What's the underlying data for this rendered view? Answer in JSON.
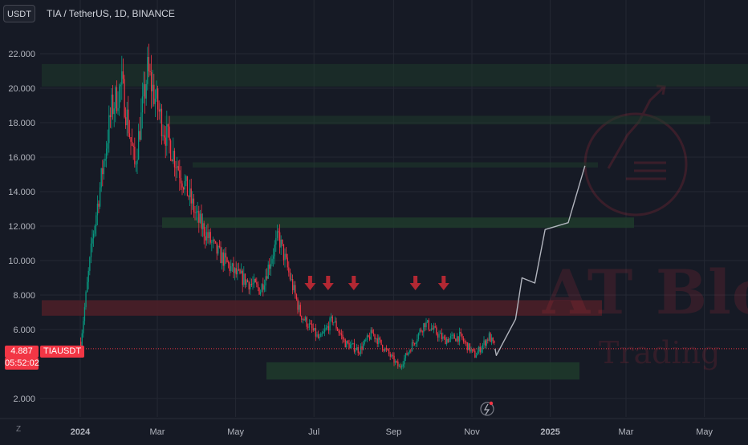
{
  "currency_button": "USDT",
  "symbol_title": "TIA / TetherUS, 1D, BINANCE",
  "price_tag": "4.887",
  "countdown": "05:52:02",
  "symbol_tag": "TIAUSDT",
  "z_label": "Z",
  "watermark_main": "AT Block",
  "watermark_sub": "Trading",
  "colors": {
    "background": "#161a25",
    "up_candle": "#089981",
    "down_candle": "#f23645",
    "support_zone": "#1f3b2c",
    "resistance_zone": "#4a1f28",
    "arrow": "#b22833",
    "projection_line": "#b2b5be"
  },
  "price_axis": {
    "labels": [
      "22.000",
      "20.000",
      "18.000",
      "16.000",
      "14.000",
      "12.000",
      "10.000",
      "8.000",
      "6.000",
      "2.000"
    ]
  },
  "time_axis": {
    "labels": [
      "2024",
      "Mar",
      "May",
      "Jul",
      "Sep",
      "Nov",
      "2025",
      "Mar",
      "May"
    ]
  },
  "icons": [
    "flash-icon",
    "down-arrow-icon",
    "logo-icon"
  ],
  "chart_data": {
    "type": "candlestick",
    "title": "TIA / TetherUS, 1D, BINANCE",
    "ylim": [
      1.2,
      24.5
    ],
    "current_price": 4.887,
    "key_points": [
      {
        "date": "2024-01-01",
        "price": 5.3
      },
      {
        "date": "2024-01-10",
        "price": 11.2
      },
      {
        "date": "2024-01-25",
        "price": 18.8
      },
      {
        "date": "2024-02-02",
        "price": 20.2
      },
      {
        "date": "2024-02-12",
        "price": 15.5
      },
      {
        "date": "2024-02-22",
        "price": 21.0
      },
      {
        "date": "2024-03-05",
        "price": 17.8
      },
      {
        "date": "2024-03-20",
        "price": 14.8
      },
      {
        "date": "2024-04-01",
        "price": 12.4
      },
      {
        "date": "2024-04-15",
        "price": 10.6
      },
      {
        "date": "2024-05-01",
        "price": 9.2
      },
      {
        "date": "2024-05-20",
        "price": 8.3
      },
      {
        "date": "2024-06-03",
        "price": 11.4
      },
      {
        "date": "2024-06-20",
        "price": 6.9
      },
      {
        "date": "2024-07-05",
        "price": 5.4
      },
      {
        "date": "2024-07-15",
        "price": 6.6
      },
      {
        "date": "2024-07-25",
        "price": 5.2
      },
      {
        "date": "2024-08-05",
        "price": 4.8
      },
      {
        "date": "2024-08-15",
        "price": 5.8
      },
      {
        "date": "2024-09-05",
        "price": 3.8
      },
      {
        "date": "2024-09-25",
        "price": 6.4
      },
      {
        "date": "2024-10-10",
        "price": 5.4
      },
      {
        "date": "2024-10-22",
        "price": 5.6
      },
      {
        "date": "2024-11-03",
        "price": 4.5
      },
      {
        "date": "2024-11-14",
        "price": 5.6
      },
      {
        "date": "2024-11-19",
        "price": 4.887
      }
    ],
    "projection": [
      {
        "date": "2024-11-20",
        "price": 4.5
      },
      {
        "date": "2024-12-05",
        "price": 6.6
      },
      {
        "date": "2024-12-10",
        "price": 9.0
      },
      {
        "date": "2024-12-20",
        "price": 8.7
      },
      {
        "date": "2024-12-28",
        "price": 11.8
      },
      {
        "date": "2025-01-15",
        "price": 12.2
      },
      {
        "date": "2025-01-28",
        "price": 15.5
      }
    ],
    "zones": [
      {
        "kind": "support",
        "from": 3.1,
        "to": 4.1
      },
      {
        "kind": "resistance",
        "from": 6.8,
        "to": 7.7
      },
      {
        "kind": "resistance",
        "from": 11.9,
        "to": 12.5
      },
      {
        "kind": "resistance",
        "from": 15.4,
        "to": 15.7
      },
      {
        "kind": "resistance",
        "from": 17.9,
        "to": 18.4
      },
      {
        "kind": "resistance",
        "from": 20.1,
        "to": 21.4
      }
    ],
    "sell_arrows_at": [
      "2024-06-28",
      "2024-07-12",
      "2024-08-01",
      "2024-09-18",
      "2024-10-10"
    ]
  }
}
